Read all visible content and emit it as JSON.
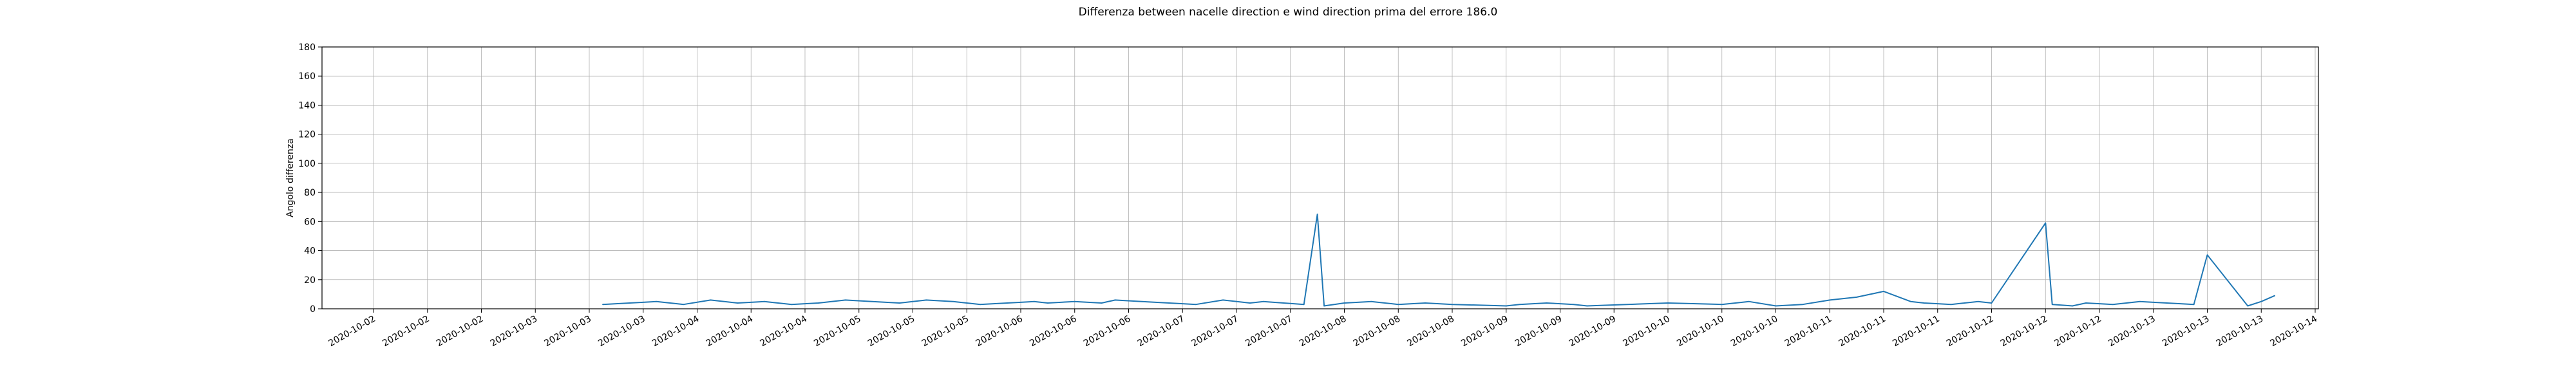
{
  "chart_data": {
    "type": "line",
    "title": "Differenza between nacelle direction e wind direction prima del errore 186.0",
    "xlabel": "",
    "ylabel": "Angolo differenza",
    "ylim": [
      0,
      180
    ],
    "yticks": [
      0,
      20,
      40,
      60,
      80,
      100,
      120,
      140,
      160,
      180
    ],
    "xticks": [
      "2020-10-02",
      "2020-10-02",
      "2020-10-02",
      "2020-10-03",
      "2020-10-03",
      "2020-10-03",
      "2020-10-04",
      "2020-10-04",
      "2020-10-04",
      "2020-10-05",
      "2020-10-05",
      "2020-10-05",
      "2020-10-06",
      "2020-10-06",
      "2020-10-06",
      "2020-10-07",
      "2020-10-07",
      "2020-10-07",
      "2020-10-08",
      "2020-10-08",
      "2020-10-08",
      "2020-10-09",
      "2020-10-09",
      "2020-10-09",
      "2020-10-10",
      "2020-10-10",
      "2020-10-10",
      "2020-10-11",
      "2020-10-11",
      "2020-10-11",
      "2020-10-12",
      "2020-10-12",
      "2020-10-12",
      "2020-10-13",
      "2020-10-13",
      "2020-10-13",
      "2020-10-14"
    ],
    "grid": true,
    "line_color": "#1f77b4",
    "series": [
      {
        "x": [
          "2020-10-03 10:00",
          "2020-10-03 14:00",
          "2020-10-03 18:00",
          "2020-10-03 22:00",
          "2020-10-04 02:00",
          "2020-10-04 06:00",
          "2020-10-04 10:00",
          "2020-10-04 14:00",
          "2020-10-04 18:00",
          "2020-10-04 22:00",
          "2020-10-05 02:00",
          "2020-10-05 06:00",
          "2020-10-05 10:00",
          "2020-10-05 14:00",
          "2020-10-05 18:00",
          "2020-10-05 22:00",
          "2020-10-06 02:00",
          "2020-10-06 04:00",
          "2020-10-06 08:00",
          "2020-10-06 12:00",
          "2020-10-06 14:00",
          "2020-10-06 18:00",
          "2020-10-06 22:00",
          "2020-10-07 02:00",
          "2020-10-07 06:00",
          "2020-10-07 10:00",
          "2020-10-07 12:00",
          "2020-10-07 18:00",
          "2020-10-07 20:00",
          "2020-10-07 21:00",
          "2020-10-08 00:00",
          "2020-10-08 04:00",
          "2020-10-08 08:00",
          "2020-10-08 12:00",
          "2020-10-08 16:00",
          "2020-10-09 00:00",
          "2020-10-09 02:00",
          "2020-10-09 06:00",
          "2020-10-09 10:00",
          "2020-10-09 12:00",
          "2020-10-10 00:00",
          "2020-10-10 08:00",
          "2020-10-10 12:00",
          "2020-10-10 16:00",
          "2020-10-10 20:00",
          "2020-10-11 00:00",
          "2020-10-11 04:00",
          "2020-10-11 08:00",
          "2020-10-11 12:00",
          "2020-10-11 14:00",
          "2020-10-11 18:00",
          "2020-10-11 22:00",
          "2020-10-12 00:00",
          "2020-10-12 08:00",
          "2020-10-12 09:00",
          "2020-10-12 12:00",
          "2020-10-12 14:00",
          "2020-10-12 18:00",
          "2020-10-12 22:00",
          "2020-10-13 02:00",
          "2020-10-13 06:00",
          "2020-10-13 08:00",
          "2020-10-13 14:00",
          "2020-10-13 16:00",
          "2020-10-13 18:00"
        ],
        "values": [
          3,
          4,
          5,
          3,
          6,
          4,
          5,
          3,
          4,
          6,
          5,
          4,
          6,
          5,
          3,
          4,
          5,
          4,
          5,
          4,
          6,
          5,
          4,
          3,
          6,
          4,
          5,
          3,
          65,
          2,
          4,
          5,
          3,
          4,
          3,
          2,
          3,
          4,
          3,
          2,
          4,
          3,
          5,
          2,
          3,
          6,
          8,
          12,
          5,
          4,
          3,
          5,
          4,
          59,
          3,
          2,
          4,
          3,
          5,
          4,
          3,
          37,
          2,
          5,
          9
        ]
      }
    ]
  }
}
